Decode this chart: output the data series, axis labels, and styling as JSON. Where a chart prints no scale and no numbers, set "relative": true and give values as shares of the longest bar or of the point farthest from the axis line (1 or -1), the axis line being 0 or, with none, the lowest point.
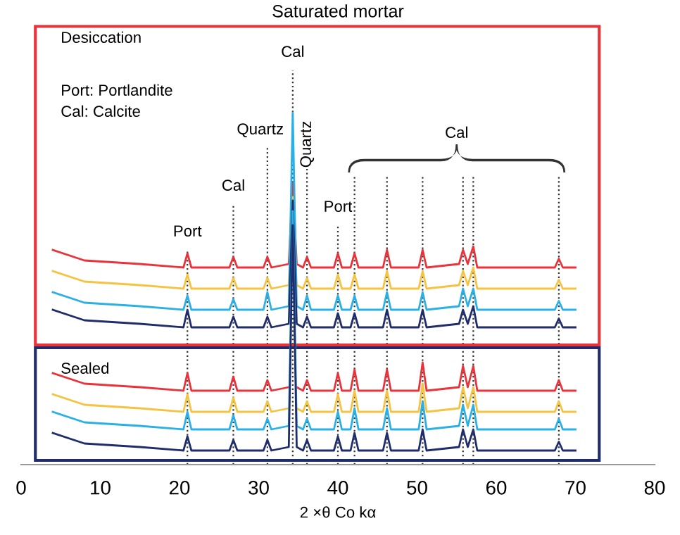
{
  "chart_data": {
    "type": "line",
    "relative": true,
    "title": "Saturated mortar",
    "xlabel": "2 ×θ Co kα",
    "xlim": [
      0,
      80
    ],
    "xticks": [
      0,
      10,
      20,
      30,
      40,
      50,
      60,
      70,
      80
    ],
    "grid": false,
    "marker": "none",
    "line_style": "solid",
    "x": [
      4,
      8,
      15,
      20.5,
      21.0,
      21.5,
      26.3,
      26.8,
      27.3,
      30.6,
      31.1,
      31.6,
      33.8,
      34.3,
      34.8,
      35.6,
      36.1,
      36.6,
      39.5,
      40.0,
      40.5,
      41.6,
      42.1,
      42.6,
      45.7,
      46.2,
      46.7,
      50.2,
      50.7,
      51.2,
      55.3,
      55.8,
      56.4,
      57.1,
      57.6,
      67.4,
      67.9,
      68.4,
      70
    ],
    "series": [
      {
        "color": "#e8333a",
        "values": [
          0.61,
          0.58,
          0.57,
          0.56,
          0.6,
          0.56,
          0.56,
          0.59,
          0.56,
          0.56,
          0.59,
          0.56,
          0.57,
          0.8,
          0.57,
          0.56,
          0.59,
          0.56,
          0.56,
          0.6,
          0.56,
          0.56,
          0.6,
          0.56,
          0.56,
          0.61,
          0.56,
          0.56,
          0.61,
          0.56,
          0.57,
          0.61,
          0.57,
          0.62,
          0.56,
          0.56,
          0.585,
          0.56,
          0.56
        ]
      },
      {
        "color": "#f5c342",
        "values": [
          0.55,
          0.52,
          0.51,
          0.5,
          0.54,
          0.5,
          0.5,
          0.53,
          0.5,
          0.5,
          0.53,
          0.5,
          0.51,
          0.76,
          0.51,
          0.5,
          0.53,
          0.5,
          0.5,
          0.54,
          0.5,
          0.5,
          0.54,
          0.5,
          0.5,
          0.55,
          0.5,
          0.5,
          0.55,
          0.5,
          0.51,
          0.55,
          0.51,
          0.56,
          0.5,
          0.5,
          0.525,
          0.5,
          0.5
        ]
      },
      {
        "color": "#2ab0e4",
        "values": [
          0.49,
          0.46,
          0.45,
          0.44,
          0.48,
          0.44,
          0.44,
          0.47,
          0.44,
          0.44,
          0.49,
          0.44,
          0.45,
          1.0,
          0.45,
          0.44,
          0.48,
          0.44,
          0.44,
          0.48,
          0.44,
          0.44,
          0.48,
          0.44,
          0.44,
          0.49,
          0.44,
          0.44,
          0.49,
          0.44,
          0.45,
          0.5,
          0.45,
          0.5,
          0.44,
          0.44,
          0.465,
          0.44,
          0.44
        ]
      },
      {
        "color": "#1f2d6b",
        "values": [
          0.44,
          0.41,
          0.4,
          0.39,
          0.44,
          0.39,
          0.39,
          0.42,
          0.39,
          0.39,
          0.42,
          0.39,
          0.4,
          0.75,
          0.4,
          0.39,
          0.42,
          0.39,
          0.39,
          0.43,
          0.39,
          0.39,
          0.43,
          0.39,
          0.39,
          0.44,
          0.39,
          0.39,
          0.44,
          0.39,
          0.4,
          0.44,
          0.4,
          0.45,
          0.39,
          0.39,
          0.415,
          0.39,
          0.39
        ]
      },
      {
        "color": "#e8333a",
        "values": [
          0.26,
          0.23,
          0.22,
          0.21,
          0.26,
          0.21,
          0.21,
          0.25,
          0.21,
          0.21,
          0.24,
          0.21,
          0.22,
          null,
          0.22,
          0.21,
          0.24,
          0.21,
          0.21,
          0.26,
          0.21,
          0.21,
          0.27,
          0.21,
          0.21,
          0.27,
          0.21,
          0.21,
          0.29,
          0.21,
          0.22,
          0.28,
          0.22,
          0.28,
          0.21,
          0.21,
          0.24,
          0.21,
          0.21
        ]
      },
      {
        "color": "#f5c342",
        "values": [
          0.2,
          0.17,
          0.16,
          0.15,
          0.2,
          0.15,
          0.15,
          0.19,
          0.15,
          0.15,
          0.18,
          0.15,
          0.16,
          null,
          0.16,
          0.15,
          0.18,
          0.15,
          0.15,
          0.2,
          0.15,
          0.15,
          0.21,
          0.15,
          0.15,
          0.21,
          0.15,
          0.15,
          0.23,
          0.15,
          0.16,
          0.22,
          0.16,
          0.22,
          0.15,
          0.15,
          0.18,
          0.15,
          0.15
        ]
      },
      {
        "color": "#2ab0e4",
        "values": [
          0.15,
          0.12,
          0.11,
          0.1,
          0.15,
          0.1,
          0.1,
          0.14,
          0.1,
          0.1,
          0.13,
          0.1,
          0.11,
          0.72,
          0.11,
          0.1,
          0.13,
          0.1,
          0.1,
          0.15,
          0.1,
          0.1,
          0.16,
          0.1,
          0.1,
          0.16,
          0.1,
          0.1,
          0.18,
          0.1,
          0.11,
          0.17,
          0.11,
          0.17,
          0.1,
          0.1,
          0.13,
          0.1,
          0.1
        ]
      },
      {
        "color": "#1f2d6b",
        "values": [
          0.09,
          0.06,
          0.05,
          0.04,
          0.08,
          0.04,
          0.04,
          0.07,
          0.04,
          0.04,
          0.07,
          0.04,
          0.05,
          0.68,
          0.05,
          0.04,
          0.07,
          0.04,
          0.04,
          0.08,
          0.04,
          0.04,
          0.09,
          0.04,
          0.04,
          0.09,
          0.04,
          0.04,
          0.1,
          0.04,
          0.05,
          0.1,
          0.05,
          0.1,
          0.04,
          0.04,
          0.065,
          0.04,
          0.04
        ]
      }
    ],
    "ref_lines": [
      {
        "axis": "x",
        "value": 21.0,
        "label": "Port",
        "color": "#333333",
        "line_style": "dotted"
      },
      {
        "axis": "x",
        "value": 26.8,
        "label": "Cal",
        "color": "#333333",
        "line_style": "dotted"
      },
      {
        "axis": "x",
        "value": 31.1,
        "label": "Quartz",
        "color": "#333333",
        "line_style": "dotted"
      },
      {
        "axis": "x",
        "value": 34.3,
        "label": "Cal",
        "color": "#333333",
        "line_style": "dotted"
      },
      {
        "axis": "x",
        "value": 36.1,
        "label": "Quartz",
        "color": "#333333",
        "line_style": "dotted"
      },
      {
        "axis": "x",
        "value": 40.0,
        "label": "Port",
        "color": "#333333",
        "line_style": "dotted"
      },
      {
        "axis": "x",
        "value": 42.1,
        "color": "#333333",
        "line_style": "dotted"
      },
      {
        "axis": "x",
        "value": 46.2,
        "color": "#333333",
        "line_style": "dotted"
      },
      {
        "axis": "x",
        "value": 50.7,
        "color": "#333333",
        "line_style": "dotted"
      },
      {
        "axis": "x",
        "value": 55.8,
        "color": "#333333",
        "line_style": "dotted"
      },
      {
        "axis": "x",
        "value": 57.1,
        "color": "#333333",
        "line_style": "dotted"
      },
      {
        "axis": "x",
        "value": 67.9,
        "color": "#333333",
        "line_style": "dotted"
      }
    ],
    "annotations": [
      "Desiccation",
      "Port: Portlandite",
      "Cal: Calcite",
      "Sealed",
      "Cal"
    ]
  }
}
